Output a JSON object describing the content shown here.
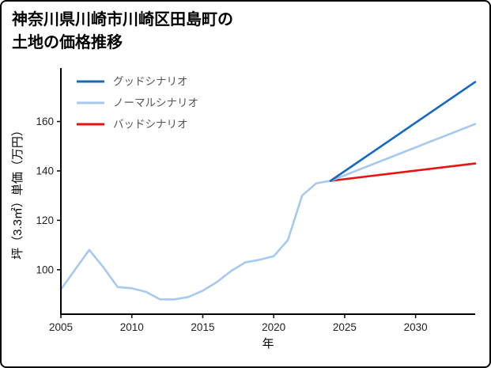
{
  "title": {
    "line1": "神奈川県川崎市川崎区田島町の",
    "line2": "土地の価格推移"
  },
  "chart_data": {
    "type": "line",
    "title": "神奈川県川崎市川崎区田島町の土地の価格推移",
    "xlabel": "年",
    "ylabel": "坪（3.3㎡）単価（万円）",
    "xlim": [
      2005,
      2034.2
    ],
    "ylim": [
      82,
      181
    ],
    "x_ticks": [
      2005,
      2010,
      2015,
      2020,
      2025,
      2030
    ],
    "y_ticks": [
      100,
      120,
      140,
      160
    ],
    "grid": false,
    "legend_position": "upper-left",
    "legend": [
      {
        "label": "グッドシナリオ",
        "color": "#1568c4"
      },
      {
        "label": "ノーマルシナリオ",
        "color": "#a6c9ef"
      },
      {
        "label": "バッドシナリオ",
        "color": "#e81212"
      }
    ],
    "series": [
      {
        "id": "history",
        "color": "#a6c9ef",
        "x": [
          2005,
          2006,
          2007,
          2008,
          2009,
          2010,
          2011,
          2012,
          2013,
          2014,
          2015,
          2016,
          2017,
          2018,
          2019,
          2020,
          2021,
          2022,
          2023,
          2024
        ],
        "values": [
          92,
          100,
          108,
          101,
          93,
          92.5,
          91,
          88,
          88,
          89,
          91.5,
          95,
          99.5,
          103,
          104,
          105.5,
          112,
          130,
          135,
          136
        ]
      },
      {
        "id": "bad-scenario",
        "color": "#e81212",
        "x": [
          2024,
          2034.2
        ],
        "values": [
          136,
          143
        ]
      },
      {
        "id": "normal-scenario",
        "color": "#a6c9ef",
        "x": [
          2024,
          2034.2
        ],
        "values": [
          136,
          159
        ]
      },
      {
        "id": "good-scenario",
        "color": "#1568c4",
        "x": [
          2024,
          2034.2
        ],
        "values": [
          136,
          176
        ]
      }
    ],
    "colors": {
      "axis": "#000000",
      "tick_label": "#222222",
      "legend_label": "#555555",
      "background": "#ffffff",
      "frame_border": "#000000"
    }
  }
}
